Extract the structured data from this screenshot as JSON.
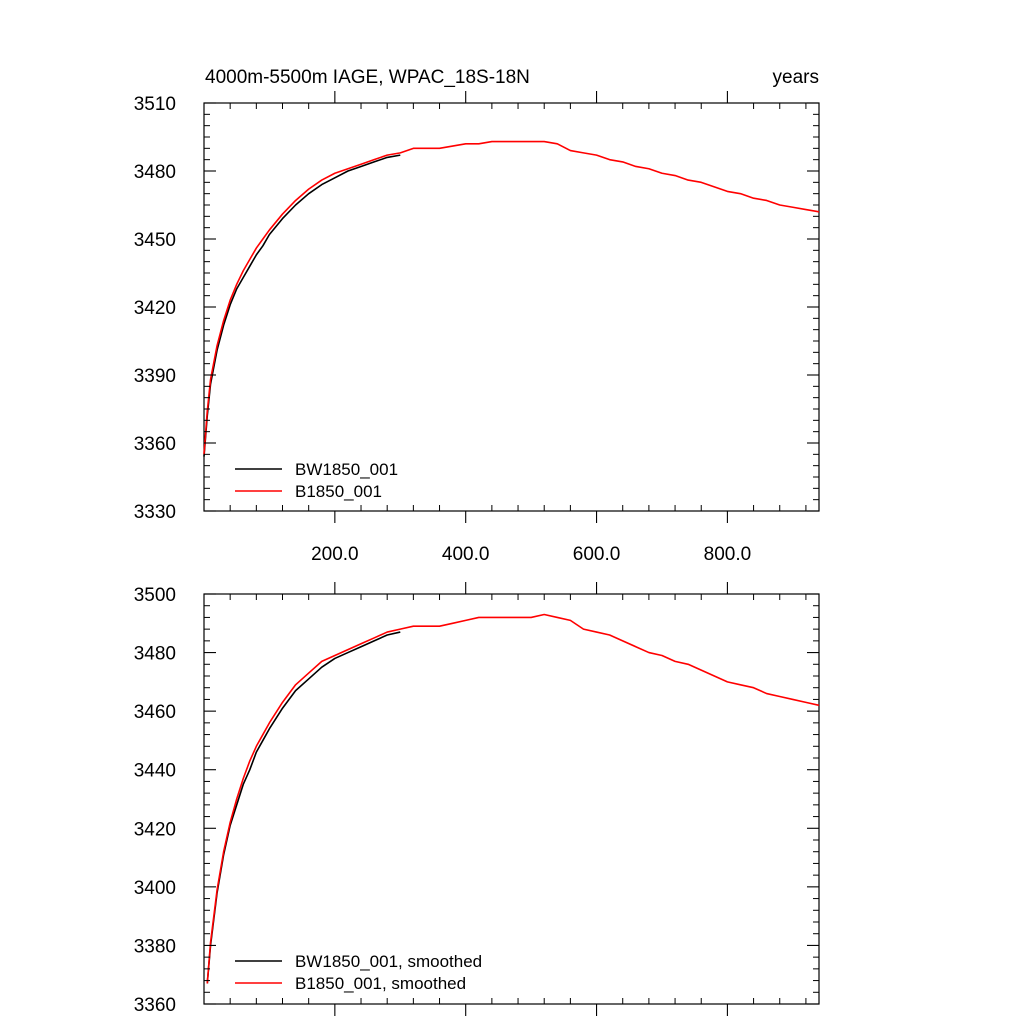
{
  "colors": {
    "series_a": "#000000",
    "series_b": "#ff0000",
    "axis": "#000000",
    "background": "#ffffff"
  },
  "chart_data": [
    {
      "type": "line",
      "title_left": "4000m-5500m IAGE, WPAC_18S-18N",
      "title_right": "years",
      "xlim": [
        0,
        940
      ],
      "ylim": [
        3330,
        3510
      ],
      "x_major_ticks": [
        200,
        400,
        600,
        800
      ],
      "x_tick_labels": [
        "200.0",
        "400.0",
        "600.0",
        "800.0"
      ],
      "y_major_ticks": [
        3330,
        3360,
        3390,
        3420,
        3450,
        3480,
        3510
      ],
      "y_tick_labels": [
        "3330",
        "3360",
        "3390",
        "3420",
        "3450",
        "3480",
        "3510"
      ],
      "legend_position": "bottom-left",
      "series": [
        {
          "name": "BW1850_001",
          "color": "#000000",
          "x": [
            0,
            5,
            10,
            20,
            30,
            40,
            50,
            60,
            70,
            80,
            90,
            100,
            120,
            140,
            160,
            180,
            200,
            220,
            240,
            260,
            280,
            300
          ],
          "y": [
            3354,
            3372,
            3386,
            3401,
            3412,
            3421,
            3428,
            3433,
            3438,
            3443,
            3447,
            3452,
            3459,
            3465,
            3470,
            3474,
            3477,
            3480,
            3482,
            3484,
            3486,
            3487
          ]
        },
        {
          "name": "B1850_001",
          "color": "#ff0000",
          "x": [
            0,
            5,
            10,
            20,
            30,
            40,
            50,
            60,
            70,
            80,
            90,
            100,
            120,
            140,
            160,
            180,
            200,
            220,
            240,
            260,
            280,
            300,
            320,
            340,
            360,
            380,
            400,
            420,
            440,
            460,
            480,
            500,
            520,
            540,
            560,
            580,
            600,
            620,
            640,
            660,
            680,
            700,
            720,
            740,
            760,
            780,
            800,
            820,
            840,
            860,
            880,
            900,
            920,
            940
          ],
          "y": [
            3355,
            3374,
            3388,
            3403,
            3414,
            3423,
            3430,
            3436,
            3441,
            3446,
            3450,
            3454,
            3461,
            3467,
            3472,
            3476,
            3479,
            3481,
            3483,
            3485,
            3487,
            3488,
            3490,
            3490,
            3490,
            3491,
            3492,
            3492,
            3493,
            3493,
            3493,
            3493,
            3493,
            3492,
            3489,
            3488,
            3487,
            3485,
            3484,
            3482,
            3481,
            3479,
            3478,
            3476,
            3475,
            3473,
            3471,
            3470,
            3468,
            3467,
            3465,
            3464,
            3463,
            3462
          ]
        }
      ]
    },
    {
      "type": "line",
      "xlim": [
        0,
        940
      ],
      "ylim": [
        3360,
        3500
      ],
      "x_major_ticks": [
        200,
        400,
        600,
        800
      ],
      "y_major_ticks": [
        3360,
        3380,
        3400,
        3420,
        3440,
        3460,
        3480,
        3500
      ],
      "y_tick_labels": [
        "3360",
        "3380",
        "3400",
        "3420",
        "3440",
        "3460",
        "3480",
        "3500"
      ],
      "legend_position": "bottom-left",
      "series": [
        {
          "name": "BW1850_001, smoothed",
          "color": "#000000",
          "x": [
            5,
            10,
            20,
            30,
            40,
            50,
            60,
            70,
            80,
            90,
            100,
            120,
            140,
            160,
            180,
            200,
            220,
            240,
            260,
            280,
            300
          ],
          "y": [
            3367,
            3380,
            3398,
            3411,
            3421,
            3428,
            3435,
            3440,
            3446,
            3450,
            3454,
            3461,
            3467,
            3471,
            3475,
            3478,
            3480,
            3482,
            3484,
            3486,
            3487
          ]
        },
        {
          "name": "B1850_001, smoothed",
          "color": "#ff0000",
          "x": [
            5,
            10,
            20,
            30,
            40,
            50,
            60,
            70,
            80,
            90,
            100,
            120,
            140,
            160,
            180,
            200,
            220,
            240,
            260,
            280,
            300,
            320,
            340,
            360,
            380,
            400,
            420,
            440,
            460,
            480,
            500,
            520,
            540,
            560,
            580,
            600,
            620,
            640,
            660,
            680,
            700,
            720,
            740,
            760,
            780,
            800,
            820,
            840,
            860,
            880,
            900,
            920,
            940
          ],
          "y": [
            3367,
            3381,
            3399,
            3412,
            3422,
            3430,
            3437,
            3443,
            3448,
            3452,
            3456,
            3463,
            3469,
            3473,
            3477,
            3479,
            3481,
            3483,
            3485,
            3487,
            3488,
            3489,
            3489,
            3489,
            3490,
            3491,
            3492,
            3492,
            3492,
            3492,
            3492,
            3493,
            3492,
            3491,
            3488,
            3487,
            3486,
            3484,
            3482,
            3480,
            3479,
            3477,
            3476,
            3474,
            3472,
            3470,
            3469,
            3468,
            3466,
            3465,
            3464,
            3463,
            3462
          ]
        }
      ]
    }
  ]
}
